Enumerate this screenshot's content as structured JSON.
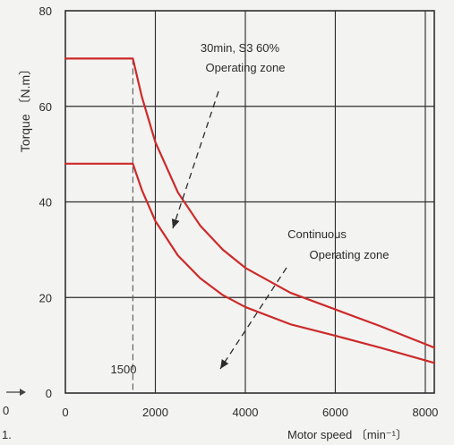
{
  "chart_data": {
    "type": "line",
    "title": "",
    "xlabel": "Motor speed  〔min⁻¹〕",
    "ylabel": "Torque 〔N.m〕",
    "xlim": [
      0,
      8200
    ],
    "ylim": [
      0,
      80
    ],
    "xticks": [
      0,
      2000,
      4000,
      6000,
      8000
    ],
    "yticks": [
      0,
      20,
      40,
      60,
      80
    ],
    "grid": true,
    "legend": "none",
    "series": [
      {
        "name": "30min, S3 60% Operating zone",
        "color": "#cc2a2a",
        "x": [
          0,
          1500,
          1700,
          2000,
          2500,
          3000,
          3500,
          4000,
          5000,
          6000,
          7000,
          8200
        ],
        "y": [
          70,
          70,
          62,
          52.5,
          42,
          35,
          30,
          26.2,
          21,
          17.5,
          14,
          9.5
        ]
      },
      {
        "name": "Continuous Operating zone",
        "color": "#cc2a2a",
        "x": [
          0,
          1500,
          1700,
          2000,
          2500,
          3000,
          3500,
          4000,
          5000,
          6000,
          7000,
          8200
        ],
        "y": [
          48,
          48,
          42.5,
          36,
          28.8,
          24,
          20.5,
          18,
          14.4,
          12,
          9.5,
          6.3
        ]
      }
    ],
    "annotations": {
      "marker_1500": "1500",
      "upper_label_line1": "30min, S3 60%",
      "upper_label_line2": "Operating zone",
      "lower_label_line1": "Continuous",
      "lower_label_line2": "Operating zone"
    },
    "stray_marks": {
      "left_bottom_text_a": "0",
      "left_bottom_text_b": "1."
    }
  }
}
